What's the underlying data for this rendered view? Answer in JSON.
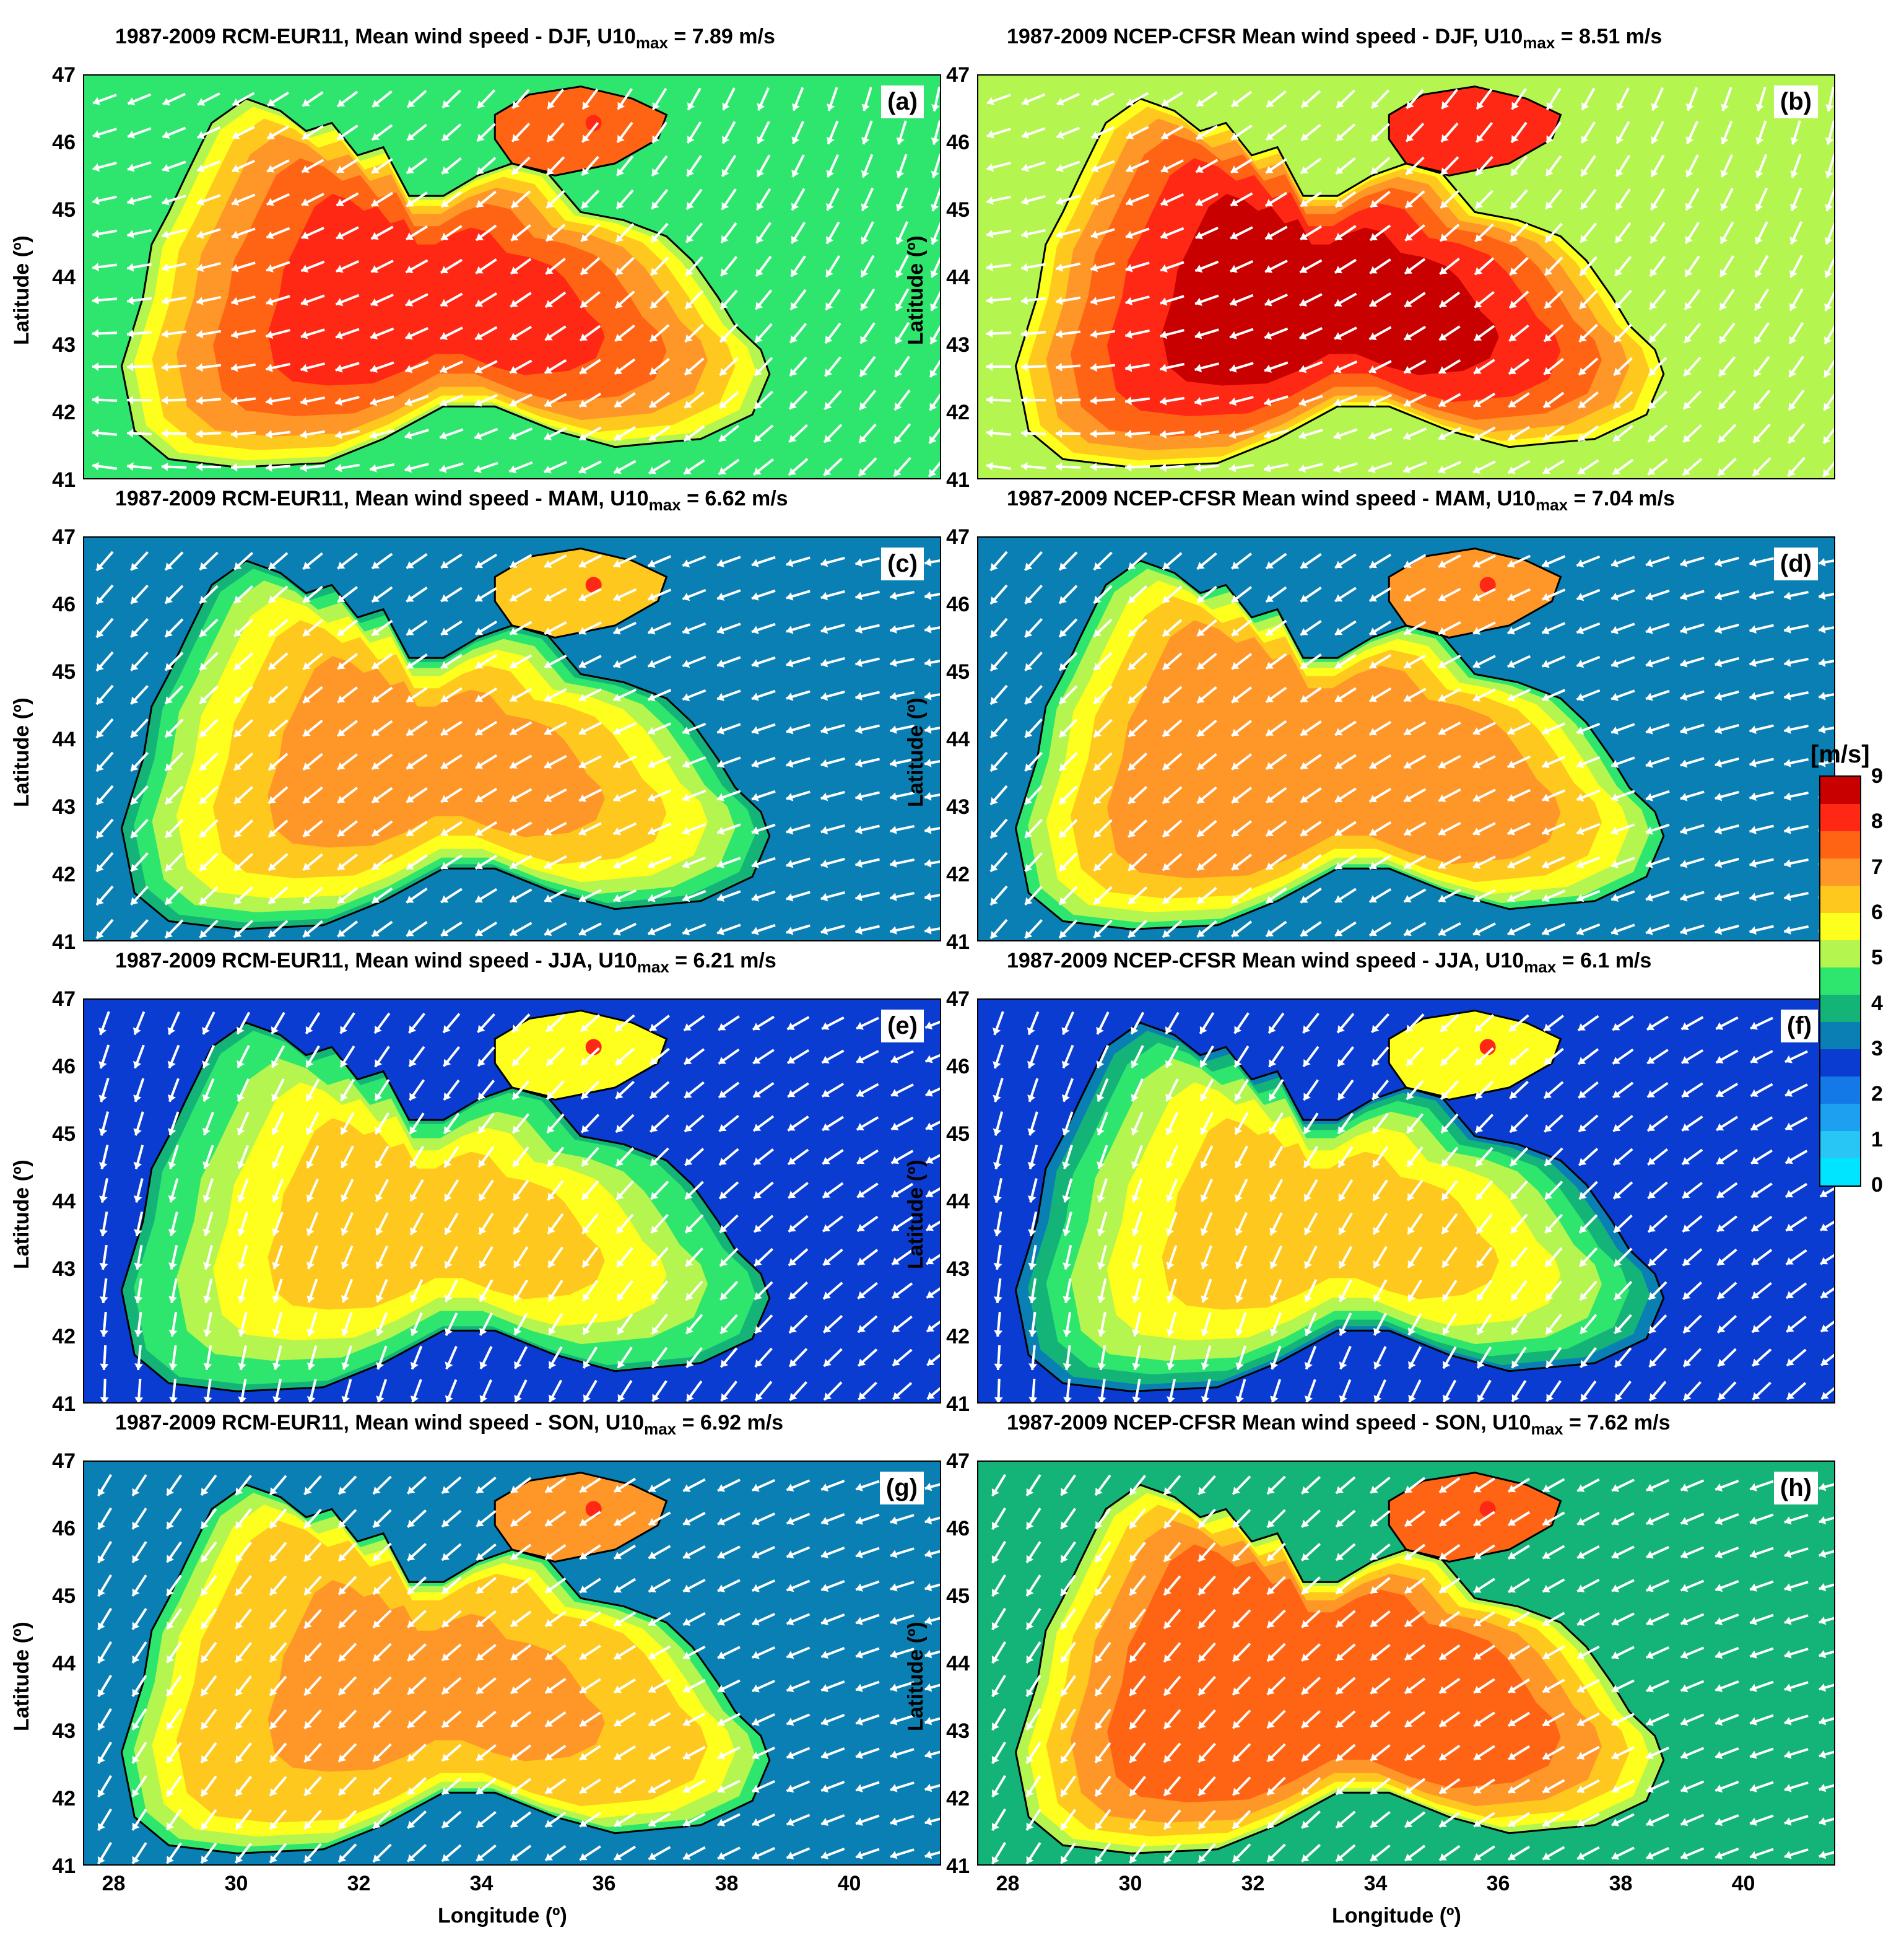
{
  "panels": [
    {
      "id": "a",
      "title": "1987-2009 RCM-EUR11, Mean wind speed - DJF, U10",
      "sub": "max",
      "value": " = 7.89 m/s",
      "label": "(a)",
      "level": 7.89
    },
    {
      "id": "b",
      "title": "1987-2009 NCEP-CFSR Mean wind speed - DJF, U10",
      "sub": "max",
      "value": " = 8.51 m/s",
      "label": "(b)",
      "level": 8.51
    },
    {
      "id": "c",
      "title": "1987-2009 RCM-EUR11, Mean wind speed - MAM, U10",
      "sub": "max",
      "value": " = 6.62 m/s",
      "label": "(c)",
      "level": 6.62
    },
    {
      "id": "d",
      "title": "1987-2009 NCEP-CFSR Mean wind speed - MAM, U10",
      "sub": "max",
      "value": " = 7.04 m/s",
      "label": "(d)",
      "level": 7.04
    },
    {
      "id": "e",
      "title": "1987-2009 RCM-EUR11, Mean wind speed - JJA, U10",
      "sub": "max",
      "value": " = 6.21 m/s",
      "label": "(e)",
      "level": 6.21
    },
    {
      "id": "f",
      "title": "1987-2009 NCEP-CFSR Mean wind speed - JJA, U10",
      "sub": "max",
      "value": " = 6.1 m/s",
      "label": "(f)",
      "level": 6.1
    },
    {
      "id": "g",
      "title": "1987-2009 RCM-EUR11, Mean wind speed - SON, U10",
      "sub": "max",
      "value": " = 6.92 m/s",
      "label": "(g)",
      "level": 6.92
    },
    {
      "id": "h",
      "title": "1987-2009 NCEP-CFSR Mean wind speed - SON, U10",
      "sub": "max",
      "value": " = 7.62 m/s",
      "label": "(h)",
      "level": 7.62
    }
  ],
  "axes": {
    "ylabel": "Latitude (º)",
    "xlabel": "Longitude (º)",
    "lat_ticks": [
      "47",
      "46",
      "45",
      "44",
      "43",
      "42",
      "41"
    ],
    "lon_ticks": [
      "28",
      "30",
      "32",
      "34",
      "36",
      "38",
      "40"
    ],
    "lat_range": [
      41,
      47
    ],
    "lon_range": [
      27.5,
      41.5
    ]
  },
  "colorbar": {
    "unit": "[m/s]",
    "ticks": [
      "9",
      "8",
      "7",
      "6",
      "5",
      "4",
      "3",
      "2",
      "1",
      "0"
    ],
    "range": [
      0,
      9
    ],
    "colors": [
      "#00e5ff",
      "#27c6f5",
      "#1ea0f0",
      "#1478e6",
      "#0a3cd2",
      "#0a7fb4",
      "#14b478",
      "#2ee66e",
      "#b4f550",
      "#ffff1e",
      "#ffc81e",
      "#ff9628",
      "#ff6414",
      "#ff2814",
      "#c80000"
    ]
  }
}
